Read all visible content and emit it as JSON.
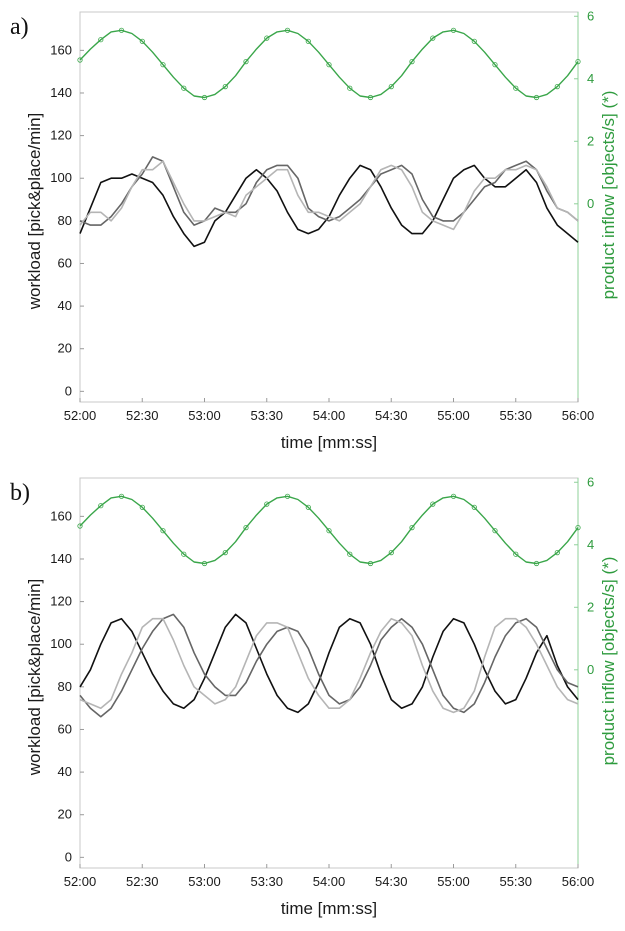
{
  "chart_data": [
    {
      "type": "line",
      "panel_label": "a)",
      "xlabel": "time [mm:ss]",
      "ylabel": "workload [pick&place/min]",
      "y2label": "product inflow [objects/s] (*)",
      "x_ticks": [
        "52:00",
        "52:30",
        "53:00",
        "53:30",
        "54:00",
        "54:30",
        "55:00",
        "55:30",
        "56:00"
      ],
      "xlim": [
        "52:00",
        "56:00"
      ],
      "y_ticks": [
        0,
        20,
        40,
        60,
        80,
        100,
        120,
        140,
        160
      ],
      "ylim": [
        -5,
        178
      ],
      "y2_ticks": [
        0,
        2,
        4,
        6
      ],
      "y2_range_mapping": {
        "y2_0_at_y": 88,
        "y2_6_at_y": 176
      },
      "grid": false,
      "colors": {
        "inflow": "#3aa64a",
        "dark": "#111111",
        "mid": "#666666",
        "light": "#b5b5b5",
        "axis": "#9a9a9a"
      },
      "series": [
        {
          "axis": "right",
          "x": [
            "52:00",
            "52:05",
            "52:10",
            "52:15",
            "52:20",
            "52:25",
            "52:30",
            "52:35",
            "52:40",
            "52:45",
            "52:50",
            "52:55",
            "53:00",
            "53:05",
            "53:10",
            "53:15",
            "53:20",
            "53:25",
            "53:30",
            "53:35",
            "53:40",
            "53:45",
            "53:50",
            "53:55",
            "54:00",
            "54:05",
            "54:10",
            "54:15",
            "54:20",
            "54:25",
            "54:30",
            "54:35",
            "54:40",
            "54:45",
            "54:50",
            "54:55",
            "55:00",
            "55:05",
            "55:10",
            "55:15",
            "55:20",
            "55:25",
            "55:30",
            "55:35",
            "55:40",
            "55:45",
            "55:50",
            "55:55",
            "56:00"
          ],
          "values": [
            4.6,
            4.95,
            5.25,
            5.5,
            5.55,
            5.45,
            5.2,
            4.85,
            4.45,
            4.05,
            3.7,
            3.45,
            3.4,
            3.5,
            3.75,
            4.1,
            4.55,
            4.95,
            5.3,
            5.5,
            5.55,
            5.45,
            5.2,
            4.85,
            4.45,
            4.05,
            3.7,
            3.45,
            3.4,
            3.5,
            3.75,
            4.1,
            4.55,
            4.95,
            5.3,
            5.5,
            5.55,
            5.45,
            5.2,
            4.85,
            4.45,
            4.05,
            3.7,
            3.45,
            3.4,
            3.5,
            3.75,
            4.1,
            4.55
          ]
        },
        {
          "x": [
            "52:00",
            "52:05",
            "52:10",
            "52:15",
            "52:20",
            "52:25",
            "52:30",
            "52:35",
            "52:40",
            "52:45",
            "52:50",
            "52:55",
            "53:00",
            "53:05",
            "53:10",
            "53:15",
            "53:20",
            "53:25",
            "53:30",
            "53:35",
            "53:40",
            "53:45",
            "53:50",
            "53:55",
            "54:00",
            "54:05",
            "54:10",
            "54:15",
            "54:20",
            "54:25",
            "54:30",
            "54:35",
            "54:40",
            "54:45",
            "54:50",
            "54:55",
            "55:00",
            "55:05",
            "55:10",
            "55:15",
            "55:20",
            "55:25",
            "55:30",
            "55:35",
            "55:40",
            "55:45",
            "55:50",
            "55:55",
            "56:00"
          ],
          "values": [
            78,
            84,
            84,
            80,
            86,
            96,
            104,
            104,
            108,
            98,
            88,
            80,
            80,
            82,
            84,
            82,
            92,
            96,
            100,
            104,
            104,
            92,
            84,
            84,
            82,
            80,
            84,
            88,
            96,
            104,
            106,
            104,
            96,
            84,
            80,
            78,
            76,
            84,
            94,
            100,
            100,
            104,
            104,
            106,
            104,
            96,
            86,
            84,
            80
          ]
        },
        {
          "x": [
            "52:00",
            "52:05",
            "52:10",
            "52:15",
            "52:20",
            "52:25",
            "52:30",
            "52:35",
            "52:40",
            "52:45",
            "52:50",
            "52:55",
            "53:00",
            "53:05",
            "53:10",
            "53:15",
            "53:20",
            "53:25",
            "53:30",
            "53:35",
            "53:40",
            "53:45",
            "53:50",
            "53:55",
            "54:00",
            "54:05",
            "54:10",
            "54:15",
            "54:20",
            "54:25",
            "54:30",
            "54:35",
            "54:40",
            "54:45",
            "54:50",
            "54:55",
            "55:00",
            "55:05",
            "55:10",
            "55:15",
            "55:20",
            "55:25",
            "55:30",
            "55:35",
            "55:40",
            "55:45",
            "55:50",
            "55:55",
            "56:00"
          ],
          "values": [
            80,
            78,
            78,
            82,
            88,
            96,
            102,
            110,
            108,
            96,
            84,
            78,
            80,
            86,
            84,
            84,
            88,
            98,
            104,
            106,
            106,
            100,
            86,
            82,
            80,
            82,
            86,
            90,
            96,
            102,
            104,
            106,
            102,
            90,
            82,
            80,
            80,
            84,
            90,
            96,
            98,
            104,
            106,
            108,
            104,
            94,
            86,
            84,
            80
          ]
        },
        {
          "x": [
            "52:00",
            "52:05",
            "52:10",
            "52:15",
            "52:20",
            "52:25",
            "52:30",
            "52:35",
            "52:40",
            "52:45",
            "52:50",
            "52:55",
            "53:00",
            "53:05",
            "53:10",
            "53:15",
            "53:20",
            "53:25",
            "53:30",
            "53:35",
            "53:40",
            "53:45",
            "53:50",
            "53:55",
            "54:00",
            "54:05",
            "54:10",
            "54:15",
            "54:20",
            "54:25",
            "54:30",
            "54:35",
            "54:40",
            "54:45",
            "54:50",
            "54:55",
            "55:00",
            "55:05",
            "55:10",
            "55:15",
            "55:20",
            "55:25",
            "55:30",
            "55:35",
            "55:40",
            "55:45",
            "55:50",
            "55:55",
            "56:00"
          ],
          "values": [
            74,
            86,
            98,
            100,
            100,
            102,
            100,
            98,
            92,
            82,
            74,
            68,
            70,
            80,
            84,
            92,
            100,
            104,
            100,
            94,
            84,
            76,
            74,
            76,
            82,
            92,
            100,
            106,
            104,
            96,
            86,
            78,
            74,
            74,
            80,
            90,
            100,
            104,
            106,
            100,
            96,
            96,
            100,
            104,
            98,
            86,
            78,
            74,
            70
          ]
        }
      ]
    },
    {
      "type": "line",
      "panel_label": "b)",
      "xlabel": "time [mm:ss]",
      "ylabel": "workload [pick&place/min]",
      "y2label": "product inflow [objects/s] (*)",
      "x_ticks": [
        "52:00",
        "52:30",
        "53:00",
        "53:30",
        "54:00",
        "54:30",
        "55:00",
        "55:30",
        "56:00"
      ],
      "xlim": [
        "52:00",
        "56:00"
      ],
      "y_ticks": [
        0,
        20,
        40,
        60,
        80,
        100,
        120,
        140,
        160
      ],
      "ylim": [
        -5,
        178
      ],
      "y2_ticks": [
        0,
        2,
        4,
        6
      ],
      "y2_range_mapping": {
        "y2_0_at_y": 88,
        "y2_6_at_y": 176
      },
      "grid": false,
      "colors": {
        "inflow": "#3aa64a",
        "dark": "#111111",
        "mid": "#666666",
        "light": "#b5b5b5",
        "axis": "#9a9a9a"
      },
      "series": [
        {
          "axis": "right",
          "x": [
            "52:00",
            "52:05",
            "52:10",
            "52:15",
            "52:20",
            "52:25",
            "52:30",
            "52:35",
            "52:40",
            "52:45",
            "52:50",
            "52:55",
            "53:00",
            "53:05",
            "53:10",
            "53:15",
            "53:20",
            "53:25",
            "53:30",
            "53:35",
            "53:40",
            "53:45",
            "53:50",
            "53:55",
            "54:00",
            "54:05",
            "54:10",
            "54:15",
            "54:20",
            "54:25",
            "54:30",
            "54:35",
            "54:40",
            "54:45",
            "54:50",
            "54:55",
            "55:00",
            "55:05",
            "55:10",
            "55:15",
            "55:20",
            "55:25",
            "55:30",
            "55:35",
            "55:40",
            "55:45",
            "55:50",
            "55:55",
            "56:00"
          ],
          "values": [
            4.6,
            4.95,
            5.25,
            5.5,
            5.55,
            5.45,
            5.2,
            4.85,
            4.45,
            4.05,
            3.7,
            3.45,
            3.4,
            3.5,
            3.75,
            4.1,
            4.55,
            4.95,
            5.3,
            5.5,
            5.55,
            5.45,
            5.2,
            4.85,
            4.45,
            4.05,
            3.7,
            3.45,
            3.4,
            3.5,
            3.75,
            4.1,
            4.55,
            4.95,
            5.3,
            5.5,
            5.55,
            5.45,
            5.2,
            4.85,
            4.45,
            4.05,
            3.7,
            3.45,
            3.4,
            3.5,
            3.75,
            4.1,
            4.55
          ]
        },
        {
          "x": [
            "52:00",
            "52:05",
            "52:10",
            "52:15",
            "52:20",
            "52:25",
            "52:30",
            "52:35",
            "52:40",
            "52:45",
            "52:50",
            "52:55",
            "53:00",
            "53:05",
            "53:10",
            "53:15",
            "53:20",
            "53:25",
            "53:30",
            "53:35",
            "53:40",
            "53:45",
            "53:50",
            "53:55",
            "54:00",
            "54:05",
            "54:10",
            "54:15",
            "54:20",
            "54:25",
            "54:30",
            "54:35",
            "54:40",
            "54:45",
            "54:50",
            "54:55",
            "55:00",
            "55:05",
            "55:10",
            "55:15",
            "55:20",
            "55:25",
            "55:30",
            "55:35",
            "55:40",
            "55:45",
            "55:50",
            "55:55",
            "56:00"
          ],
          "values": [
            74,
            72,
            70,
            74,
            86,
            96,
            108,
            112,
            112,
            102,
            90,
            80,
            76,
            72,
            74,
            80,
            92,
            104,
            110,
            110,
            108,
            96,
            84,
            76,
            70,
            70,
            74,
            84,
            96,
            106,
            112,
            110,
            104,
            90,
            78,
            70,
            68,
            70,
            78,
            94,
            108,
            112,
            112,
            108,
            100,
            90,
            80,
            74,
            72
          ]
        },
        {
          "x": [
            "52:00",
            "52:05",
            "52:10",
            "52:15",
            "52:20",
            "52:25",
            "52:30",
            "52:35",
            "52:40",
            "52:45",
            "52:50",
            "52:55",
            "53:00",
            "53:05",
            "53:10",
            "53:15",
            "53:20",
            "53:25",
            "53:30",
            "53:35",
            "53:40",
            "53:45",
            "53:50",
            "53:55",
            "54:00",
            "54:05",
            "54:10",
            "54:15",
            "54:20",
            "54:25",
            "54:30",
            "54:35",
            "54:40",
            "54:45",
            "54:50",
            "54:55",
            "55:00",
            "55:05",
            "55:10",
            "55:15",
            "55:20",
            "55:25",
            "55:30",
            "55:35",
            "55:40",
            "55:45",
            "55:50",
            "55:55",
            "56:00"
          ],
          "values": [
            76,
            70,
            66,
            70,
            78,
            88,
            98,
            106,
            112,
            114,
            108,
            96,
            86,
            80,
            76,
            76,
            82,
            92,
            100,
            106,
            108,
            106,
            98,
            86,
            76,
            72,
            74,
            80,
            90,
            102,
            108,
            112,
            108,
            100,
            88,
            76,
            70,
            68,
            72,
            82,
            94,
            104,
            110,
            112,
            108,
            98,
            88,
            82,
            80
          ]
        },
        {
          "x": [
            "52:00",
            "52:05",
            "52:10",
            "52:15",
            "52:20",
            "52:25",
            "52:30",
            "52:35",
            "52:40",
            "52:45",
            "52:50",
            "52:55",
            "53:00",
            "53:05",
            "53:10",
            "53:15",
            "53:20",
            "53:25",
            "53:30",
            "53:35",
            "53:40",
            "53:45",
            "53:50",
            "53:55",
            "54:00",
            "54:05",
            "54:10",
            "54:15",
            "54:20",
            "54:25",
            "54:30",
            "54:35",
            "54:40",
            "54:45",
            "54:50",
            "54:55",
            "55:00",
            "55:05",
            "55:10",
            "55:15",
            "55:20",
            "55:25",
            "55:30",
            "55:35",
            "55:40",
            "55:45",
            "55:50",
            "55:55",
            "56:00"
          ],
          "values": [
            80,
            88,
            100,
            110,
            112,
            106,
            96,
            86,
            78,
            72,
            70,
            74,
            84,
            96,
            108,
            114,
            110,
            98,
            86,
            76,
            70,
            68,
            72,
            82,
            96,
            108,
            112,
            110,
            100,
            86,
            74,
            70,
            72,
            80,
            94,
            106,
            112,
            110,
            100,
            88,
            78,
            72,
            74,
            84,
            96,
            104,
            90,
            80,
            74
          ]
        }
      ]
    }
  ]
}
